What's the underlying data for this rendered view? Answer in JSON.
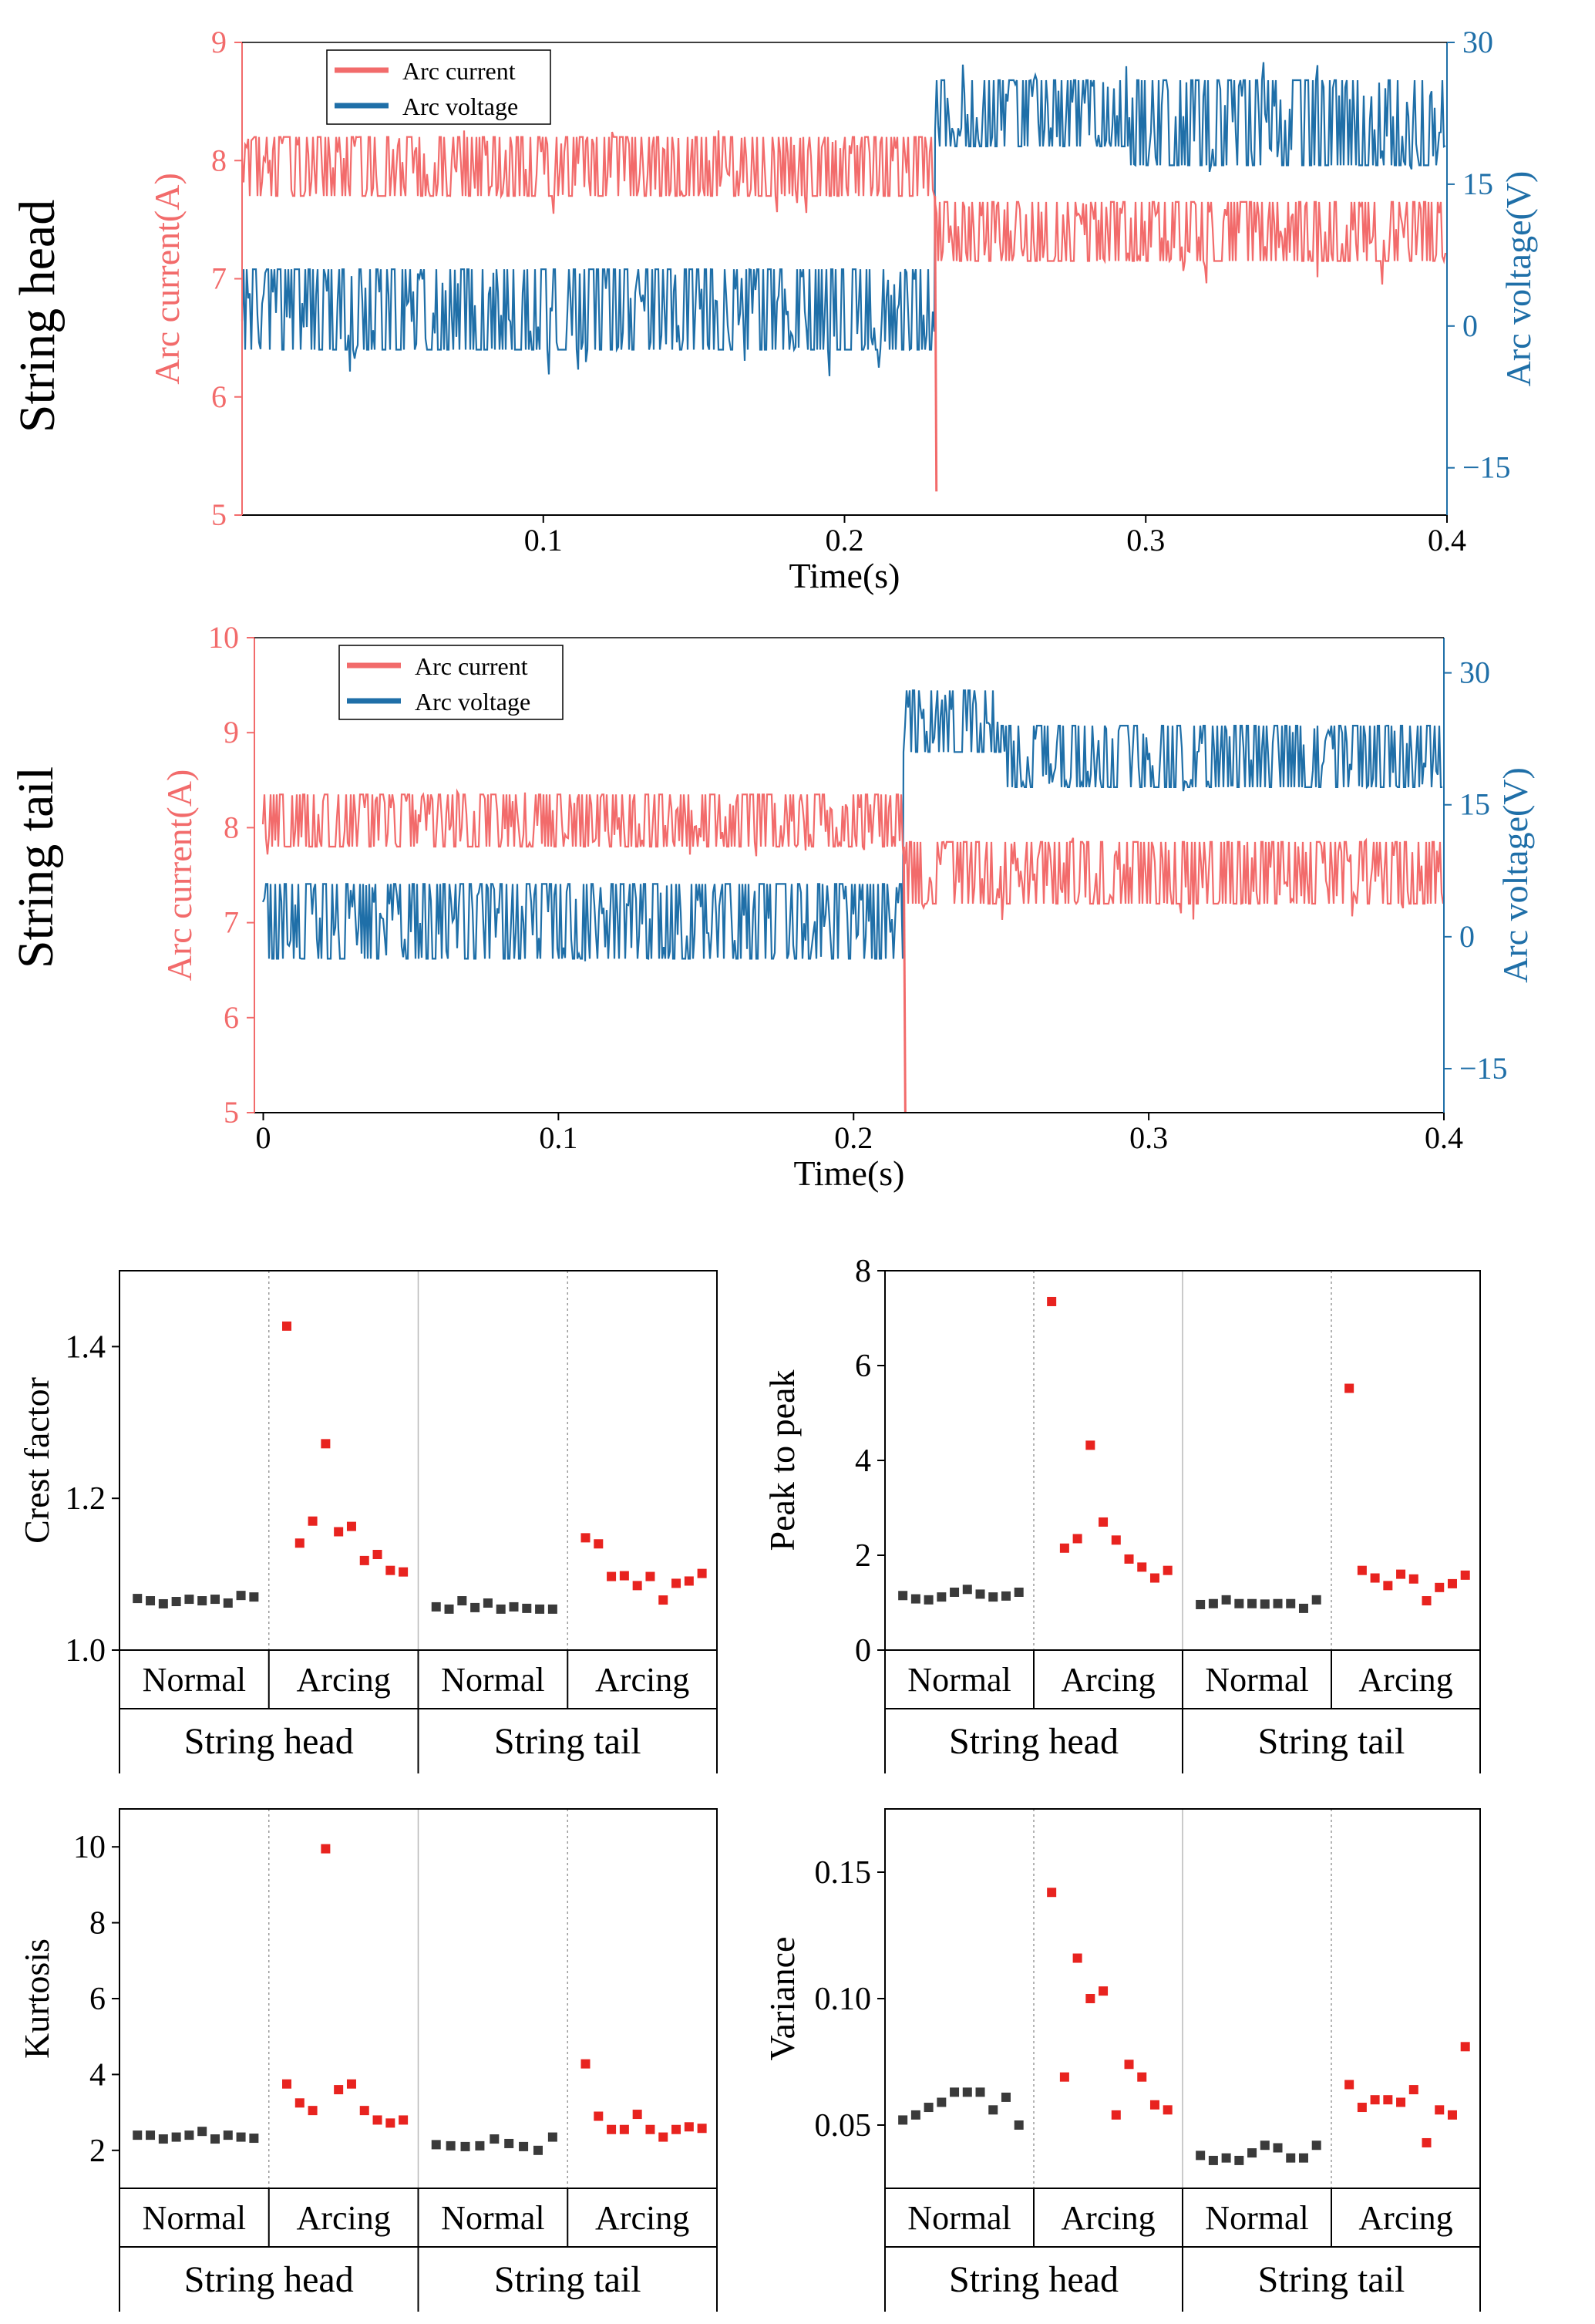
{
  "colors": {
    "current": "#f26b6b",
    "voltage": "#1f6fa8",
    "normal": "#3a3a3a",
    "arcing": "#e8231f",
    "axis": "#000000",
    "grid": "#9a9a9a"
  },
  "chart_data": [
    {
      "id": "head",
      "type": "line",
      "row_label": "String head",
      "title": "",
      "xlabel": "Time(s)",
      "ylabel_left": "Arc current(A)",
      "ylabel_right": "Arc voltage(V)",
      "xlim": [
        0,
        0.4
      ],
      "ylim_left": [
        5,
        9
      ],
      "ylim_right": [
        -20,
        30
      ],
      "xticks": [
        0.1,
        0.2,
        0.3,
        0.4
      ],
      "xtick_labels": [
        "0.1",
        "0.2",
        "0.3",
        "0.4"
      ],
      "yticks_left": [
        5,
        6,
        7,
        8,
        9
      ],
      "yticks_left_labels": [
        "5",
        "6",
        "7",
        "8",
        "9"
      ],
      "yticks_right": [
        -15,
        0,
        15,
        30
      ],
      "yticks_right_labels": [
        "−15",
        "0",
        "15",
        "30"
      ],
      "legend": [
        "Arc current",
        "Arc voltage"
      ],
      "legend_position": "top-left",
      "series": [
        {
          "name": "Arc current",
          "axis": "left",
          "segments": [
            {
              "t0": 0.0,
              "t1": 0.23,
              "lo": 7.7,
              "hi": 8.2,
              "min": 7.55,
              "max": 8.3
            },
            {
              "t0": 0.23,
              "t1": 0.4,
              "lo": 7.15,
              "hi": 7.65,
              "min": 6.95,
              "max": 7.75
            }
          ],
          "dip": {
            "t": 0.23,
            "value": 5.2
          }
        },
        {
          "name": "Arc voltage",
          "axis": "right",
          "segments": [
            {
              "t0": 0.0,
              "t1": 0.23,
              "lo": -2.5,
              "hi": 6,
              "min": -6,
              "max": 6
            },
            {
              "t0": 0.23,
              "t1": 0.295,
              "lo": 19,
              "hi": 26,
              "min": 17,
              "max": 28.5
            },
            {
              "t0": 0.295,
              "t1": 0.4,
              "lo": 17,
              "hi": 26,
              "min": 14,
              "max": 28
            }
          ]
        }
      ]
    },
    {
      "id": "tail",
      "type": "line",
      "row_label": "String tail",
      "title": "",
      "xlabel": "Time(s)",
      "ylabel_left": "Arc current(A)",
      "ylabel_right": "Arc voltage(V)",
      "xlim": [
        -0.003,
        0.4
      ],
      "ylim_left": [
        5,
        10
      ],
      "ylim_right": [
        -20,
        34
      ],
      "xticks": [
        0,
        0.1,
        0.2,
        0.3,
        0.4
      ],
      "xtick_labels": [
        "0",
        "0.1",
        "0.2",
        "0.3",
        "0.4"
      ],
      "yticks_left": [
        5,
        6,
        7,
        8,
        9,
        10
      ],
      "yticks_left_labels": [
        "5",
        "6",
        "7",
        "8",
        "9",
        "10"
      ],
      "yticks_right": [
        -15,
        0,
        15,
        30
      ],
      "yticks_right_labels": [
        "−15",
        "0",
        "15",
        "30"
      ],
      "legend": [
        "Arc current",
        "Arc voltage"
      ],
      "legend_position": "top-left",
      "series": [
        {
          "name": "Arc current",
          "axis": "left",
          "segments": [
            {
              "t0": 0.0,
              "t1": 0.217,
              "lo": 7.8,
              "hi": 8.35,
              "min": 7.65,
              "max": 8.4
            },
            {
              "t0": 0.217,
              "t1": 0.4,
              "lo": 7.2,
              "hi": 7.85,
              "min": 7.0,
              "max": 7.95
            }
          ],
          "dip": {
            "t": 0.217,
            "value": 5.0
          }
        },
        {
          "name": "Arc voltage",
          "axis": "right",
          "segments": [
            {
              "t0": 0.0,
              "t1": 0.217,
              "lo": -2.5,
              "hi": 6,
              "min": -4,
              "max": 7
            },
            {
              "t0": 0.217,
              "t1": 0.25,
              "lo": 21,
              "hi": 28,
              "min": 19,
              "max": 30
            },
            {
              "t0": 0.25,
              "t1": 0.4,
              "lo": 17,
              "hi": 24,
              "min": 16,
              "max": 25
            }
          ]
        }
      ]
    },
    {
      "id": "crest",
      "type": "scatter",
      "ylabel": "Crest factor",
      "ylim": [
        1.0,
        1.5
      ],
      "yticks": [
        1.0,
        1.2,
        1.4
      ],
      "ytick_labels": [
        "1.0",
        "1.2",
        "1.4"
      ],
      "groups": [
        "Normal",
        "Arcing",
        "Normal",
        "Arcing"
      ],
      "sections": [
        "String head",
        "String tail"
      ],
      "series": [
        {
          "name": "String head Normal",
          "values": [
            1.068,
            1.065,
            1.061,
            1.064,
            1.067,
            1.065,
            1.067,
            1.062,
            1.072,
            1.07
          ]
        },
        {
          "name": "String head Arcing",
          "values": [
            1.427,
            1.141,
            1.17,
            1.272,
            1.156,
            1.163,
            1.118,
            1.126,
            1.105,
            1.103
          ]
        },
        {
          "name": "String tail Normal",
          "values": [
            1.057,
            1.054,
            1.065,
            1.056,
            1.062,
            1.054,
            1.057,
            1.055,
            1.054,
            1.054
          ]
        },
        {
          "name": "String tail Arcing",
          "values": [
            1.148,
            1.14,
            1.097,
            1.098,
            1.085,
            1.097,
            1.066,
            1.088,
            1.091,
            1.101
          ]
        }
      ]
    },
    {
      "id": "p2p",
      "type": "scatter",
      "ylabel": "Peak to peak",
      "ylim": [
        0,
        8
      ],
      "yticks": [
        0,
        2,
        4,
        6,
        8
      ],
      "ytick_labels": [
        "0",
        "2",
        "4",
        "6",
        "8"
      ],
      "groups": [
        "Normal",
        "Arcing",
        "Normal",
        "Arcing"
      ],
      "sections": [
        "String head",
        "String tail"
      ],
      "series": [
        {
          "name": "String head Normal",
          "values": [
            1.15,
            1.08,
            1.06,
            1.12,
            1.22,
            1.28,
            1.18,
            1.12,
            1.14,
            1.22
          ]
        },
        {
          "name": "String head Arcing",
          "values": [
            7.35,
            2.15,
            2.35,
            4.32,
            2.7,
            2.32,
            1.92,
            1.75,
            1.52,
            1.68
          ]
        },
        {
          "name": "String tail Normal",
          "values": [
            0.96,
            0.98,
            1.06,
            0.98,
            0.98,
            0.97,
            0.98,
            0.98,
            0.88,
            1.06
          ]
        },
        {
          "name": "String tail Arcing",
          "values": [
            5.52,
            1.68,
            1.52,
            1.36,
            1.6,
            1.5,
            1.04,
            1.32,
            1.4,
            1.58
          ]
        }
      ]
    },
    {
      "id": "kurtosis",
      "type": "scatter",
      "ylabel": "Kurtosis",
      "ylim": [
        1,
        11
      ],
      "yticks": [
        2,
        4,
        6,
        8,
        10
      ],
      "ytick_labels": [
        "2",
        "4",
        "6",
        "8",
        "10"
      ],
      "groups": [
        "Normal",
        "Arcing",
        "Normal",
        "Arcing"
      ],
      "sections": [
        "String head",
        "String tail"
      ],
      "series": [
        {
          "name": "String head Normal",
          "values": [
            2.4,
            2.4,
            2.3,
            2.35,
            2.4,
            2.5,
            2.3,
            2.4,
            2.35,
            2.32
          ]
        },
        {
          "name": "String head Arcing",
          "values": [
            3.75,
            3.25,
            3.05,
            9.95,
            3.6,
            3.75,
            3.05,
            2.8,
            2.72,
            2.8
          ]
        },
        {
          "name": "String tail Normal",
          "values": [
            2.15,
            2.12,
            2.1,
            2.12,
            2.3,
            2.18,
            2.1,
            2.0,
            2.35
          ]
        },
        {
          "name": "String tail Arcing",
          "values": [
            4.28,
            2.9,
            2.55,
            2.55,
            2.95,
            2.55,
            2.35,
            2.55,
            2.62,
            2.58
          ]
        }
      ]
    },
    {
      "id": "variance",
      "type": "scatter",
      "ylabel": "Variance",
      "ylim": [
        0.025,
        0.175
      ],
      "yticks": [
        0.05,
        0.1,
        0.15
      ],
      "ytick_labels": [
        "0.05",
        "0.10",
        "0.15"
      ],
      "groups": [
        "Normal",
        "Arcing",
        "Normal",
        "Arcing"
      ],
      "sections": [
        "String head",
        "String tail"
      ],
      "series": [
        {
          "name": "String head Normal",
          "values": [
            0.052,
            0.054,
            0.057,
            0.059,
            0.063,
            0.063,
            0.063,
            0.056,
            0.061,
            0.05
          ]
        },
        {
          "name": "String head Arcing",
          "values": [
            0.142,
            0.069,
            0.116,
            0.1,
            0.103,
            0.054,
            0.074,
            0.069,
            0.058,
            0.056
          ]
        },
        {
          "name": "String tail Normal",
          "values": [
            0.038,
            0.036,
            0.037,
            0.036,
            0.039,
            0.042,
            0.041,
            0.037,
            0.037,
            0.042
          ]
        },
        {
          "name": "String tail Arcing",
          "values": [
            0.066,
            0.057,
            0.06,
            0.06,
            0.059,
            0.064,
            0.043,
            0.056,
            0.054,
            0.081
          ]
        }
      ]
    }
  ]
}
